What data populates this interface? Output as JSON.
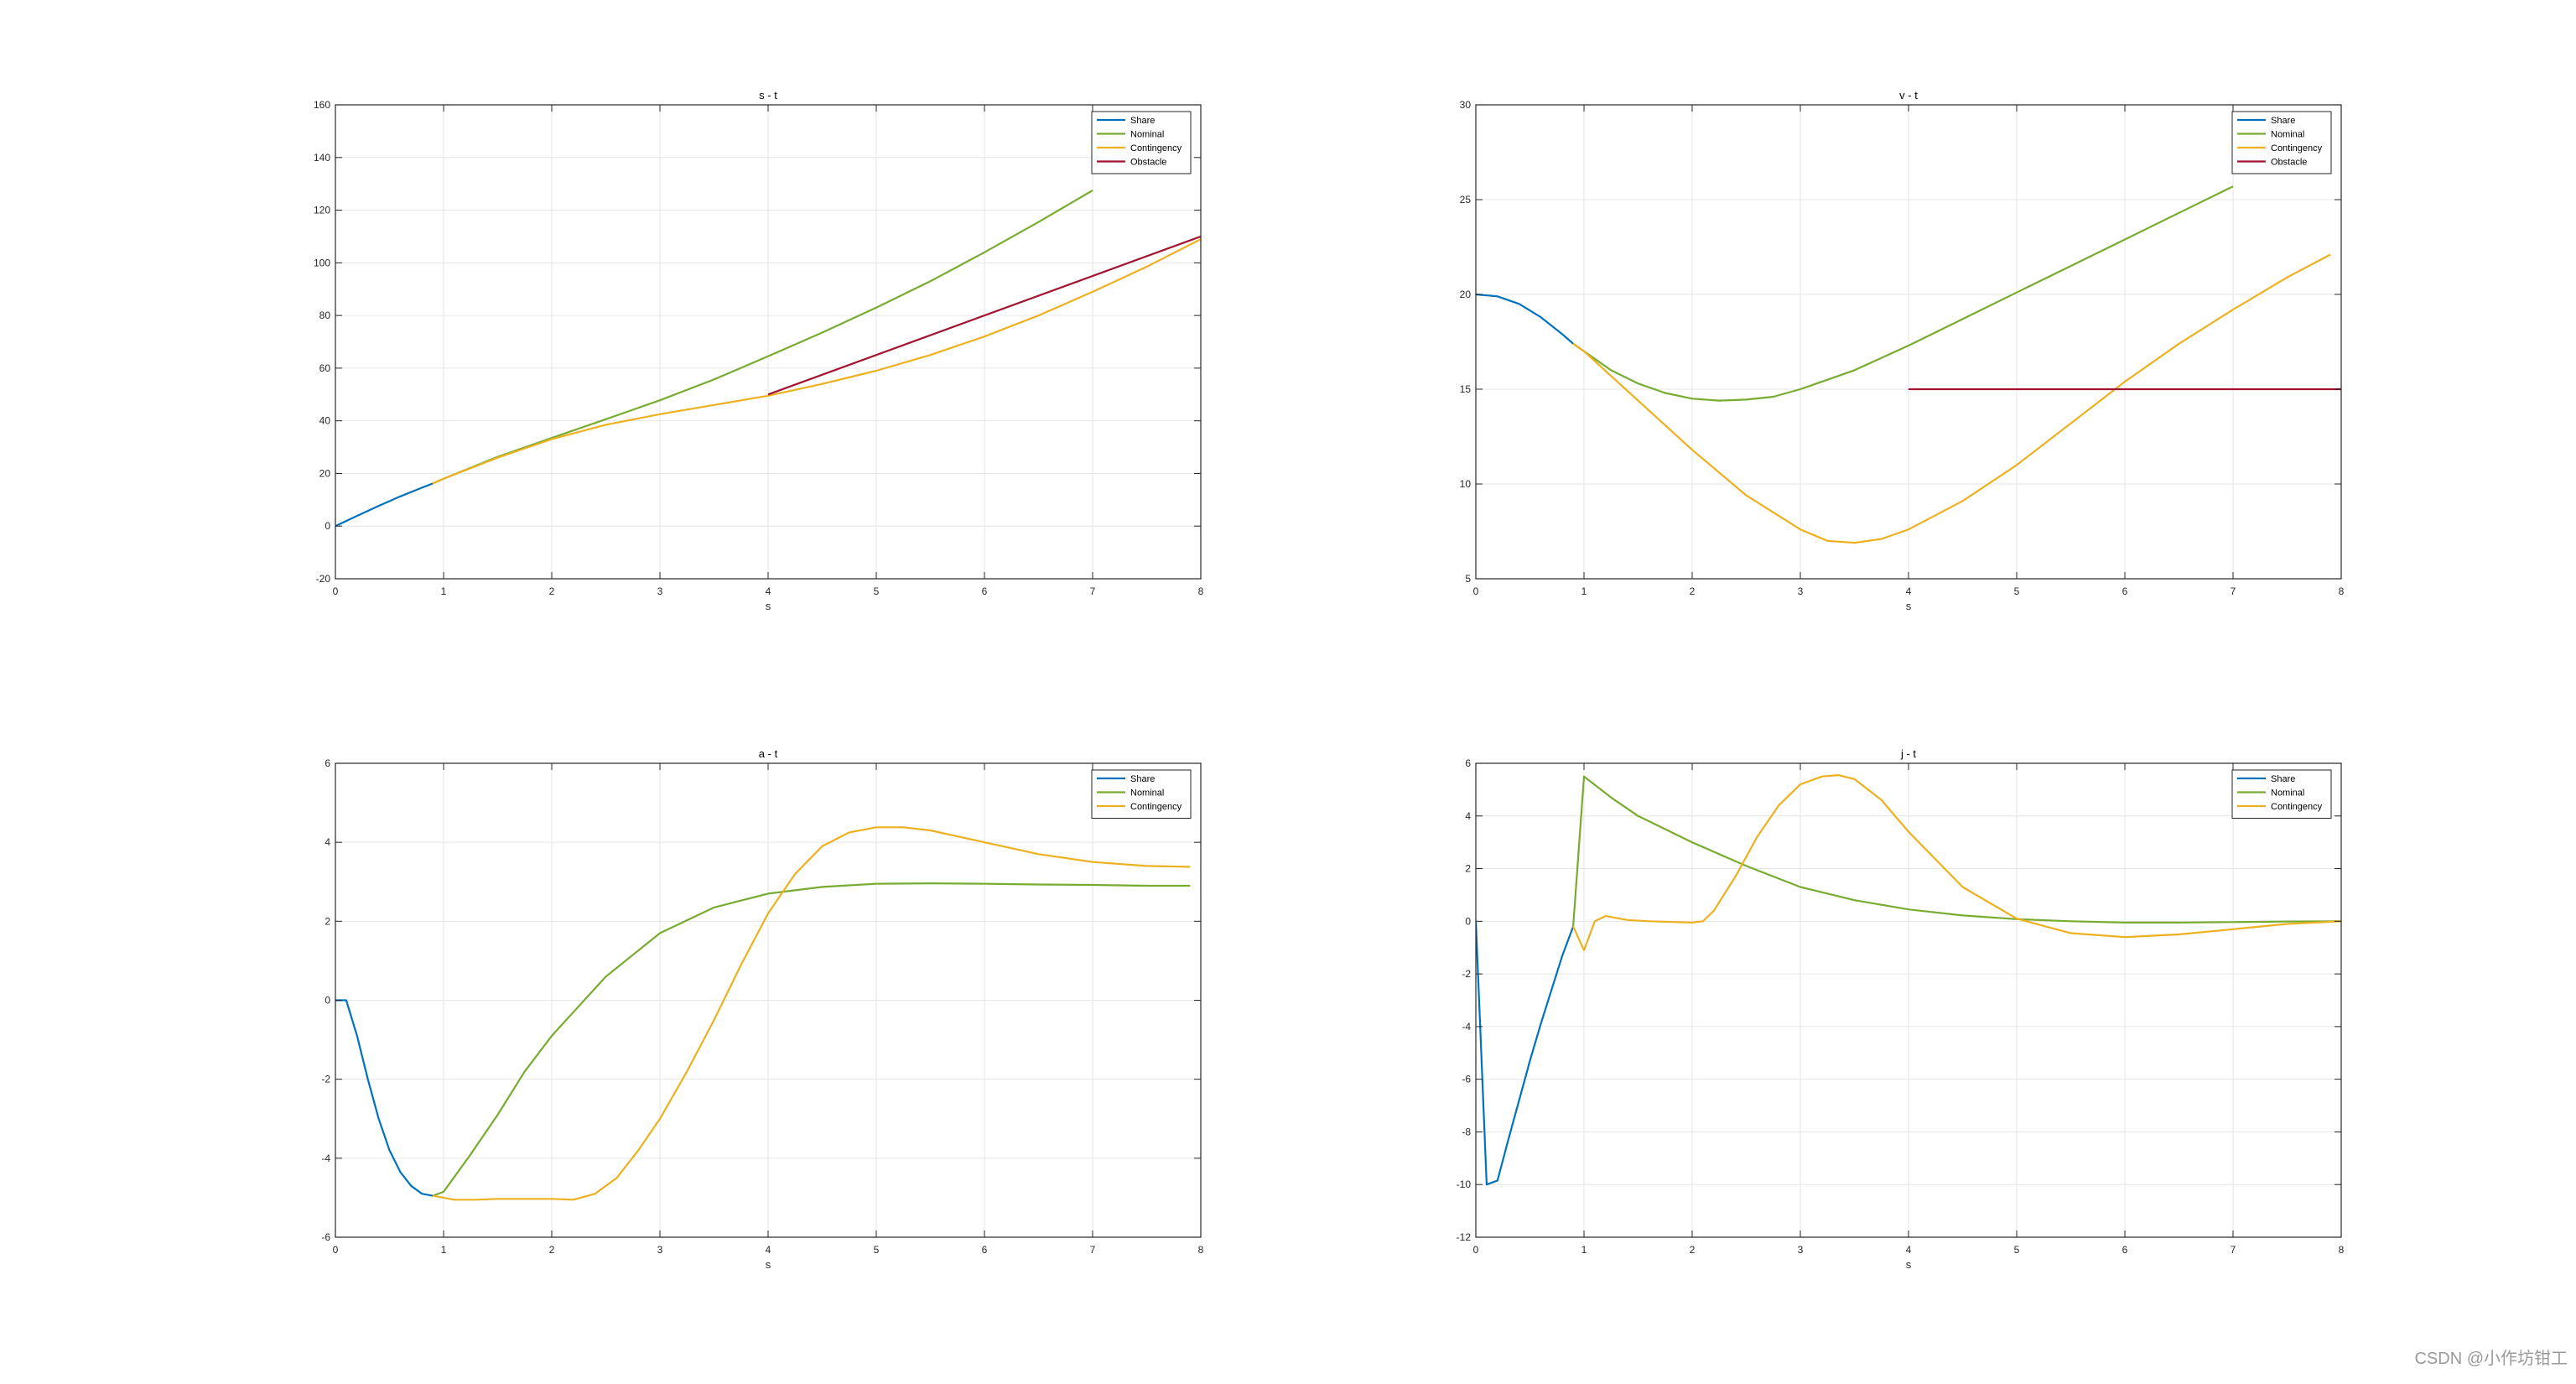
{
  "watermark": "CSDN @小作坊钳工",
  "colors": {
    "Share": "#0072BD",
    "Nominal": "#77AC30",
    "Contingency": "#EDB120",
    "Obstacle": "#A2142F"
  },
  "chart_data": [
    {
      "type": "line",
      "title": "s - t",
      "xlabel": "s",
      "xlim": [
        0,
        8
      ],
      "ylim": [
        -20,
        160
      ],
      "xticks": [
        0,
        1,
        2,
        3,
        4,
        5,
        6,
        7,
        8
      ],
      "yticks": [
        -20,
        0,
        20,
        40,
        60,
        80,
        100,
        120,
        140,
        160
      ],
      "legend": "top-right",
      "grid": true,
      "series": [
        {
          "name": "Share",
          "x": [
            0,
            0.2,
            0.4,
            0.6,
            0.8,
            0.9
          ],
          "y": [
            0,
            3.9,
            7.7,
            11.3,
            14.6,
            16.2
          ]
        },
        {
          "name": "Nominal",
          "x": [
            0.9,
            1,
            1.5,
            2,
            2.5,
            3,
            3.5,
            4,
            4.5,
            5,
            5.5,
            6,
            6.5,
            7
          ],
          "y": [
            16.2,
            18,
            26.3,
            33.5,
            40.6,
            47.8,
            55.7,
            64.5,
            73.5,
            83,
            93,
            104,
            115.5,
            127.5
          ]
        },
        {
          "name": "Contingency",
          "x": [
            0.9,
            1,
            1.5,
            2,
            2.5,
            3,
            3.5,
            4,
            4.5,
            5,
            5.5,
            6,
            6.5,
            7,
            7.5,
            8
          ],
          "y": [
            16.2,
            18,
            26,
            33,
            38.5,
            42.5,
            46,
            49.5,
            54,
            59,
            65,
            72,
            80,
            89,
            98.5,
            109
          ]
        },
        {
          "name": "Obstacle",
          "x": [
            4,
            8
          ],
          "y": [
            50,
            110
          ]
        }
      ]
    },
    {
      "type": "line",
      "title": "v - t",
      "xlabel": "s",
      "xlim": [
        0,
        8
      ],
      "ylim": [
        5,
        30
      ],
      "xticks": [
        0,
        1,
        2,
        3,
        4,
        5,
        6,
        7,
        8
      ],
      "yticks": [
        5,
        10,
        15,
        20,
        25,
        30
      ],
      "legend": "top-right",
      "grid": true,
      "series": [
        {
          "name": "Share",
          "x": [
            0,
            0.2,
            0.4,
            0.6,
            0.8,
            0.9
          ],
          "y": [
            20,
            19.9,
            19.5,
            18.8,
            17.9,
            17.4
          ]
        },
        {
          "name": "Nominal",
          "x": [
            0.9,
            1,
            1.25,
            1.5,
            1.75,
            2,
            2.25,
            2.5,
            2.75,
            3,
            3.5,
            4,
            4.5,
            5,
            5.5,
            6,
            6.5,
            7
          ],
          "y": [
            17.4,
            17,
            16,
            15.3,
            14.8,
            14.5,
            14.4,
            14.45,
            14.6,
            15,
            16,
            17.3,
            18.7,
            20.1,
            21.5,
            22.9,
            24.3,
            25.7
          ]
        },
        {
          "name": "Contingency",
          "x": [
            0.9,
            1,
            1.5,
            2,
            2.5,
            3,
            3.25,
            3.5,
            3.75,
            4,
            4.5,
            5,
            5.5,
            6,
            6.5,
            7,
            7.5,
            7.9
          ],
          "y": [
            17.4,
            17,
            14.4,
            11.8,
            9.4,
            7.6,
            7,
            6.9,
            7.1,
            7.6,
            9.1,
            11,
            13.2,
            15.4,
            17.4,
            19.2,
            20.9,
            22.1
          ]
        },
        {
          "name": "Obstacle",
          "x": [
            4,
            8
          ],
          "y": [
            15,
            15
          ]
        }
      ]
    },
    {
      "type": "line",
      "title": "a - t",
      "xlabel": "s",
      "xlim": [
        0,
        8
      ],
      "ylim": [
        -6,
        6
      ],
      "xticks": [
        0,
        1,
        2,
        3,
        4,
        5,
        6,
        7,
        8
      ],
      "yticks": [
        -6,
        -4,
        -2,
        0,
        2,
        4,
        6
      ],
      "legend": "top-right",
      "grid": true,
      "series": [
        {
          "name": "Share",
          "x": [
            0,
            0.1,
            0.2,
            0.3,
            0.4,
            0.5,
            0.6,
            0.7,
            0.8,
            0.9
          ],
          "y": [
            0,
            0,
            -0.9,
            -2,
            -3,
            -3.8,
            -4.35,
            -4.7,
            -4.9,
            -4.95
          ]
        },
        {
          "name": "Nominal",
          "x": [
            0.9,
            1,
            1.25,
            1.5,
            1.75,
            2,
            2.5,
            3,
            3.5,
            4,
            4.5,
            5,
            5.5,
            6,
            6.5,
            7,
            7.5,
            7.9
          ],
          "y": [
            -4.95,
            -4.85,
            -3.9,
            -2.9,
            -1.8,
            -0.9,
            0.6,
            1.7,
            2.35,
            2.7,
            2.87,
            2.95,
            2.96,
            2.95,
            2.93,
            2.92,
            2.9,
            2.9
          ]
        },
        {
          "name": "Contingency",
          "x": [
            0.9,
            1,
            1.1,
            1.3,
            1.5,
            2,
            2.2,
            2.4,
            2.6,
            2.8,
            3,
            3.25,
            3.5,
            3.75,
            4,
            4.25,
            4.5,
            4.75,
            5,
            5.25,
            5.5,
            6,
            6.5,
            7,
            7.5,
            7.9
          ],
          "y": [
            -4.95,
            -5,
            -5.05,
            -5.05,
            -5.03,
            -5.03,
            -5.05,
            -4.9,
            -4.5,
            -3.8,
            -3,
            -1.8,
            -0.5,
            0.9,
            2.2,
            3.2,
            3.9,
            4.25,
            4.38,
            4.38,
            4.3,
            4,
            3.7,
            3.5,
            3.4,
            3.38
          ]
        }
      ]
    },
    {
      "type": "line",
      "title": "j - t",
      "xlabel": "s",
      "xlim": [
        0,
        8
      ],
      "ylim": [
        -12,
        6
      ],
      "xticks": [
        0,
        1,
        2,
        3,
        4,
        5,
        6,
        7,
        8
      ],
      "yticks": [
        -12,
        -10,
        -8,
        -6,
        -4,
        -2,
        0,
        2,
        4,
        6
      ],
      "legend": "top-right",
      "grid": true,
      "series": [
        {
          "name": "Share",
          "x": [
            0,
            0.05,
            0.1,
            0.2,
            0.3,
            0.4,
            0.5,
            0.6,
            0.7,
            0.8,
            0.9
          ],
          "y": [
            0,
            -5,
            -10,
            -9.85,
            -8.3,
            -6.8,
            -5.3,
            -3.9,
            -2.6,
            -1.3,
            -0.2
          ]
        },
        {
          "name": "Nominal",
          "x": [
            0.9,
            1,
            1.25,
            1.5,
            2,
            2.5,
            3,
            3.5,
            4,
            4.5,
            5,
            5.5,
            6,
            6.5,
            7,
            7.5,
            8
          ],
          "y": [
            -0.2,
            5.5,
            4.7,
            4,
            3,
            2.1,
            1.3,
            0.8,
            0.45,
            0.22,
            0.08,
            0,
            -0.05,
            -0.05,
            -0.03,
            -0.01,
            0
          ]
        },
        {
          "name": "Contingency",
          "x": [
            0.9,
            1,
            1.1,
            1.2,
            1.4,
            1.6,
            2,
            2.1,
            2.2,
            2.4,
            2.6,
            2.8,
            3,
            3.2,
            3.35,
            3.5,
            3.75,
            4,
            4.5,
            5,
            5.5,
            6,
            6.5,
            7,
            7.5,
            8
          ],
          "y": [
            -0.2,
            -1.1,
            0,
            0.2,
            0.05,
            0,
            -0.05,
            0,
            0.4,
            1.7,
            3.2,
            4.4,
            5.2,
            5.5,
            5.55,
            5.4,
            4.6,
            3.4,
            1.3,
            0.1,
            -0.45,
            -0.6,
            -0.5,
            -0.3,
            -0.1,
            0
          ]
        }
      ]
    }
  ]
}
